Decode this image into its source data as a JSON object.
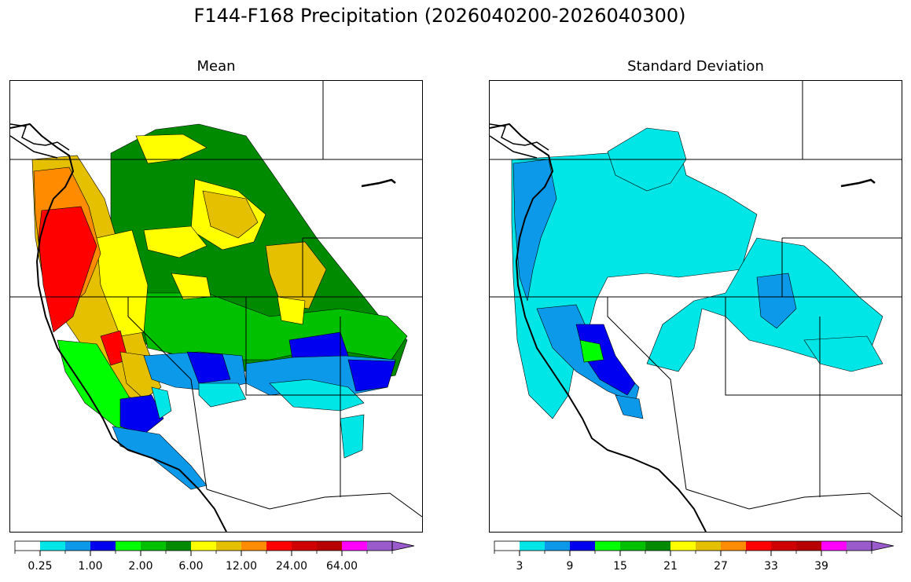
{
  "title": "F144-F168 Precipitation (2026040200-2026040300)",
  "panels": [
    {
      "id": "mean",
      "title": "Mean",
      "colorbar": {
        "colors": [
          "#ffffff",
          "#00e5e5",
          "#0d99ea",
          "#0000f0",
          "#00ff00",
          "#00c000",
          "#008a00",
          "#ffff00",
          "#e5c000",
          "#ff8c00",
          "#ff0000",
          "#d00000",
          "#b80000",
          "#ff00ff",
          "#9a5ccc"
        ],
        "tick_labels": [
          "0.25",
          "1.00",
          "2.00",
          "6.00",
          "12.00",
          "24.00",
          "64.00"
        ]
      }
    },
    {
      "id": "stddev",
      "title": "Standard Deviation",
      "colorbar": {
        "colors": [
          "#ffffff",
          "#00e5e5",
          "#0d99ea",
          "#0000f0",
          "#00ff00",
          "#00c000",
          "#008a00",
          "#ffff00",
          "#e5c000",
          "#ff8c00",
          "#ff0000",
          "#d00000",
          "#b80000",
          "#ff00ff",
          "#9a5ccc"
        ],
        "tick_labels": [
          "3",
          "9",
          "15",
          "21",
          "27",
          "33",
          "39"
        ]
      }
    }
  ],
  "map_regions": {
    "mean": [
      {
        "color": "#008a00",
        "pts": [
          [
            128,
            92
          ],
          [
            185,
            62
          ],
          [
            240,
            55
          ],
          [
            300,
            70
          ],
          [
            335,
            120
          ],
          [
            390,
            200
          ],
          [
            470,
            300
          ],
          [
            505,
            330
          ],
          [
            490,
            375
          ],
          [
            400,
            390
          ],
          [
            300,
            370
          ],
          [
            210,
            350
          ],
          [
            160,
            330
          ],
          [
            128,
            250
          ]
        ]
      },
      {
        "color": "#00c000",
        "pts": [
          [
            160,
            270
          ],
          [
            250,
            270
          ],
          [
            330,
            300
          ],
          [
            420,
            290
          ],
          [
            480,
            300
          ],
          [
            505,
            325
          ],
          [
            485,
            355
          ],
          [
            400,
            340
          ],
          [
            330,
            355
          ],
          [
            240,
            355
          ],
          [
            175,
            340
          ]
        ]
      },
      {
        "color": "#ffff00",
        "pts": [
          [
            160,
            70
          ],
          [
            220,
            68
          ],
          [
            250,
            85
          ],
          [
            215,
            100
          ],
          [
            175,
            105
          ]
        ]
      },
      {
        "color": "#ffff00",
        "pts": [
          [
            235,
            125
          ],
          [
            290,
            140
          ],
          [
            325,
            170
          ],
          [
            310,
            205
          ],
          [
            270,
            215
          ],
          [
            230,
            190
          ]
        ]
      },
      {
        "color": "#e5c000",
        "pts": [
          [
            245,
            140
          ],
          [
            300,
            150
          ],
          [
            315,
            180
          ],
          [
            290,
            200
          ],
          [
            255,
            185
          ]
        ]
      },
      {
        "color": "#ffff00",
        "pts": [
          [
            170,
            190
          ],
          [
            230,
            185
          ],
          [
            250,
            210
          ],
          [
            215,
            225
          ],
          [
            175,
            215
          ]
        ]
      },
      {
        "color": "#e5c000",
        "pts": [
          [
            325,
            210
          ],
          [
            375,
            205
          ],
          [
            402,
            240
          ],
          [
            380,
            290
          ],
          [
            345,
            285
          ],
          [
            330,
            245
          ]
        ]
      },
      {
        "color": "#ffff00",
        "pts": [
          [
            205,
            245
          ],
          [
            250,
            250
          ],
          [
            255,
            275
          ],
          [
            220,
            278
          ]
        ]
      },
      {
        "color": "#ffff00",
        "pts": [
          [
            340,
            275
          ],
          [
            375,
            280
          ],
          [
            372,
            310
          ],
          [
            345,
            305
          ]
        ]
      },
      {
        "color": "#e5c000",
        "pts": [
          [
            28,
            100
          ],
          [
            85,
            95
          ],
          [
            120,
            150
          ],
          [
            150,
            250
          ],
          [
            170,
            330
          ],
          [
            190,
            380
          ],
          [
            170,
            415
          ],
          [
            120,
            380
          ],
          [
            80,
            320
          ],
          [
            45,
            270
          ],
          [
            32,
            200
          ]
        ]
      },
      {
        "color": "#ffff00",
        "pts": [
          [
            110,
            200
          ],
          [
            155,
            190
          ],
          [
            175,
            260
          ],
          [
            170,
            320
          ],
          [
            140,
            325
          ],
          [
            115,
            260
          ]
        ]
      },
      {
        "color": "#ff8c00",
        "pts": [
          [
            30,
            115
          ],
          [
            75,
            110
          ],
          [
            100,
            160
          ],
          [
            115,
            220
          ],
          [
            95,
            270
          ],
          [
            60,
            300
          ],
          [
            40,
            240
          ],
          [
            32,
            170
          ]
        ]
      },
      {
        "color": "#ff0000",
        "pts": [
          [
            40,
            165
          ],
          [
            90,
            160
          ],
          [
            110,
            210
          ],
          [
            100,
            240
          ],
          [
            80,
            300
          ],
          [
            55,
            320
          ],
          [
            42,
            260
          ],
          [
            36,
            200
          ]
        ]
      },
      {
        "color": "#ff0000",
        "pts": [
          [
            115,
            325
          ],
          [
            140,
            318
          ],
          [
            150,
            355
          ],
          [
            128,
            362
          ]
        ]
      },
      {
        "color": "#e5c000",
        "pts": [
          [
            140,
            345
          ],
          [
            175,
            350
          ],
          [
            192,
            390
          ],
          [
            170,
            405
          ],
          [
            148,
            385
          ]
        ]
      },
      {
        "color": "#00ff00",
        "pts": [
          [
            60,
            330
          ],
          [
            110,
            335
          ],
          [
            150,
            400
          ],
          [
            165,
            440
          ],
          [
            140,
            445
          ],
          [
            95,
            410
          ],
          [
            70,
            370
          ]
        ]
      },
      {
        "color": "#0d99ea",
        "pts": [
          [
            170,
            350
          ],
          [
            240,
            345
          ],
          [
            295,
            350
          ],
          [
            300,
            385
          ],
          [
            260,
            395
          ],
          [
            210,
            390
          ],
          [
            180,
            380
          ]
        ]
      },
      {
        "color": "#0000f0",
        "pts": [
          [
            225,
            345
          ],
          [
            270,
            348
          ],
          [
            280,
            380
          ],
          [
            240,
            385
          ]
        ]
      },
      {
        "color": "#00e5e5",
        "pts": [
          [
            240,
            385
          ],
          [
            290,
            385
          ],
          [
            300,
            405
          ],
          [
            255,
            415
          ],
          [
            240,
            400
          ]
        ]
      },
      {
        "color": "#0000f0",
        "pts": [
          [
            355,
            330
          ],
          [
            420,
            320
          ],
          [
            430,
            350
          ],
          [
            380,
            370
          ],
          [
            360,
            360
          ]
        ]
      },
      {
        "color": "#0d99ea",
        "pts": [
          [
            300,
            360
          ],
          [
            360,
            352
          ],
          [
            425,
            350
          ],
          [
            490,
            355
          ],
          [
            480,
            390
          ],
          [
            430,
            400
          ],
          [
            380,
            395
          ],
          [
            330,
            400
          ],
          [
            300,
            385
          ]
        ]
      },
      {
        "color": "#0000f0",
        "pts": [
          [
            430,
            355
          ],
          [
            490,
            357
          ],
          [
            480,
            390
          ],
          [
            440,
            395
          ]
        ]
      },
      {
        "color": "#00e5e5",
        "pts": [
          [
            330,
            385
          ],
          [
            380,
            380
          ],
          [
            430,
            390
          ],
          [
            450,
            410
          ],
          [
            420,
            420
          ],
          [
            360,
            415
          ]
        ]
      },
      {
        "color": "#00e5e5",
        "pts": [
          [
            420,
            430
          ],
          [
            450,
            425
          ],
          [
            448,
            470
          ],
          [
            425,
            480
          ]
        ]
      },
      {
        "color": "#0000f0",
        "pts": [
          [
            140,
            405
          ],
          [
            180,
            400
          ],
          [
            195,
            430
          ],
          [
            170,
            450
          ],
          [
            140,
            440
          ]
        ]
      },
      {
        "color": "#0d99ea",
        "pts": [
          [
            130,
            440
          ],
          [
            190,
            450
          ],
          [
            230,
            490
          ],
          [
            250,
            515
          ],
          [
            230,
            520
          ],
          [
            180,
            480
          ],
          [
            140,
            465
          ]
        ]
      },
      {
        "color": "#00e5e5",
        "pts": [
          [
            180,
            390
          ],
          [
            200,
            395
          ],
          [
            205,
            420
          ],
          [
            190,
            430
          ]
        ]
      }
    ],
    "stddev": [
      {
        "color": "#00e5e5",
        "pts": [
          [
            28,
            100
          ],
          [
            110,
            95
          ],
          [
            175,
            90
          ],
          [
            210,
            75
          ],
          [
            240,
            80
          ],
          [
            250,
            120
          ],
          [
            300,
            145
          ],
          [
            340,
            170
          ],
          [
            320,
            240
          ],
          [
            240,
            250
          ],
          [
            200,
            245
          ],
          [
            150,
            250
          ],
          [
            135,
            280
          ],
          [
            125,
            320
          ],
          [
            110,
            350
          ],
          [
            100,
            400
          ],
          [
            80,
            430
          ],
          [
            50,
            400
          ],
          [
            35,
            330
          ],
          [
            30,
            250
          ],
          [
            28,
            180
          ]
        ]
      },
      {
        "color": "#00e5e5",
        "pts": [
          [
            340,
            200
          ],
          [
            400,
            210
          ],
          [
            430,
            235
          ],
          [
            455,
            260
          ],
          [
            470,
            275
          ],
          [
            500,
            300
          ],
          [
            480,
            355
          ],
          [
            420,
            355
          ],
          [
            370,
            340
          ],
          [
            330,
            330
          ],
          [
            300,
            300
          ],
          [
            270,
            290
          ],
          [
            260,
            340
          ],
          [
            240,
            370
          ],
          [
            200,
            360
          ],
          [
            220,
            310
          ],
          [
            260,
            280
          ],
          [
            300,
            270
          ]
        ]
      },
      {
        "color": "#00e5e5",
        "pts": [
          [
            200,
            60
          ],
          [
            240,
            65
          ],
          [
            250,
            100
          ],
          [
            230,
            130
          ],
          [
            200,
            140
          ],
          [
            160,
            120
          ],
          [
            150,
            90
          ]
        ]
      },
      {
        "color": "#00e5e5",
        "pts": [
          [
            400,
            330
          ],
          [
            480,
            325
          ],
          [
            500,
            360
          ],
          [
            460,
            370
          ],
          [
            420,
            360
          ]
        ]
      },
      {
        "color": "#0d99ea",
        "pts": [
          [
            30,
            105
          ],
          [
            75,
            100
          ],
          [
            85,
            150
          ],
          [
            65,
            200
          ],
          [
            55,
            240
          ],
          [
            48,
            280
          ],
          [
            38,
            250
          ],
          [
            32,
            180
          ]
        ]
      },
      {
        "color": "#0d99ea",
        "pts": [
          [
            340,
            250
          ],
          [
            380,
            245
          ],
          [
            390,
            290
          ],
          [
            365,
            315
          ],
          [
            345,
            300
          ]
        ]
      },
      {
        "color": "#0d99ea",
        "pts": [
          [
            60,
            290
          ],
          [
            110,
            285
          ],
          [
            130,
            330
          ],
          [
            160,
            360
          ],
          [
            190,
            390
          ],
          [
            185,
            410
          ],
          [
            150,
            395
          ],
          [
            110,
            370
          ],
          [
            80,
            340
          ]
        ]
      },
      {
        "color": "#0000f0",
        "pts": [
          [
            110,
            310
          ],
          [
            145,
            310
          ],
          [
            160,
            350
          ],
          [
            185,
            385
          ],
          [
            175,
            400
          ],
          [
            140,
            380
          ],
          [
            120,
            350
          ]
        ]
      },
      {
        "color": "#00ff00",
        "pts": [
          [
            115,
            330
          ],
          [
            140,
            335
          ],
          [
            145,
            355
          ],
          [
            120,
            358
          ]
        ]
      },
      {
        "color": "#0d99ea",
        "pts": [
          [
            160,
            400
          ],
          [
            190,
            405
          ],
          [
            195,
            430
          ],
          [
            170,
            425
          ]
        ]
      }
    ]
  }
}
